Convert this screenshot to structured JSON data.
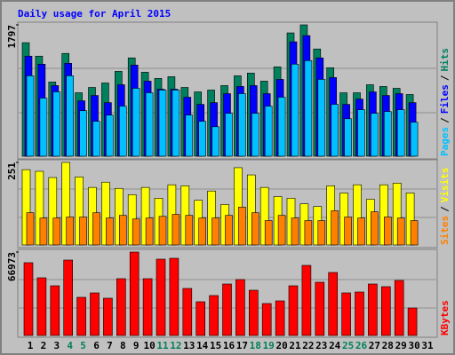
{
  "chart_data": [
    {
      "type": "bar",
      "title": "Daily usage for April 2015",
      "ylim": [
        0,
        1797
      ],
      "yticks": [
        1797
      ],
      "legend_separator": "/",
      "series": [
        {
          "name": "Hits",
          "color": "#00805c",
          "values": [
            1553,
            1369,
            1015,
            1406,
            868,
            941,
            1002,
            1161,
            1345,
            1149,
            1064,
            1088,
            941,
            880,
            905,
            966,
            1100,
            1137,
            1027,
            1222,
            1687,
            1797,
            1467,
            1210,
            868,
            868,
            978,
            954,
            929,
            844,
            null
          ]
        },
        {
          "name": "Files",
          "color": "#0000ff",
          "values": [
            1369,
            1259,
            966,
            1271,
            758,
            831,
            733,
            978,
            1247,
            1027,
            917,
            917,
            807,
            709,
            733,
            856,
            954,
            966,
            856,
            1051,
            1565,
            1650,
            1345,
            1076,
            709,
            782,
            880,
            831,
            856,
            733,
            null
          ]
        },
        {
          "name": "Pages",
          "color": "#00c0ff",
          "values": [
            1100,
            795,
            880,
            1100,
            623,
            477,
            562,
            685,
            929,
            868,
            905,
            905,
            562,
            477,
            403,
            587,
            856,
            587,
            685,
            807,
            1259,
            1308,
            1051,
            709,
            513,
            636,
            587,
            611,
            636,
            465,
            null
          ]
        }
      ]
    },
    {
      "type": "bar",
      "ylim": [
        0,
        251
      ],
      "yticks": [
        251
      ],
      "legend_separator": "/",
      "series": [
        {
          "name": "Visits",
          "color": "#ffff00",
          "values": [
            229,
            224,
            205,
            251,
            207,
            175,
            191,
            172,
            153,
            175,
            142,
            183,
            180,
            136,
            164,
            123,
            235,
            213,
            175,
            147,
            142,
            125,
            117,
            180,
            158,
            183,
            139,
            183,
            188,
            158,
            null
          ]
        },
        {
          "name": "Sites",
          "color": "#ff8000",
          "values": [
            98,
            82,
            82,
            85,
            85,
            98,
            82,
            90,
            79,
            82,
            87,
            93,
            90,
            82,
            82,
            90,
            115,
            98,
            74,
            90,
            82,
            74,
            74,
            104,
            85,
            82,
            101,
            85,
            82,
            74,
            null
          ]
        }
      ]
    },
    {
      "type": "bar",
      "ylim": [
        0,
        66973
      ],
      "yticks": [
        66973
      ],
      "categories": [
        "1",
        "2",
        "3",
        "4",
        "5",
        "6",
        "7",
        "8",
        "9",
        "10",
        "11",
        "12",
        "13",
        "14",
        "15",
        "16",
        "17",
        "18",
        "19",
        "20",
        "21",
        "22",
        "23",
        "24",
        "25",
        "26",
        "27",
        "28",
        "29",
        "30",
        "31"
      ],
      "category_colors": [
        "#000000",
        "#000000",
        "#000000",
        "#00805c",
        "#00805c",
        "#000000",
        "#000000",
        "#000000",
        "#000000",
        "#000000",
        "#00805c",
        "#00805c",
        "#000000",
        "#000000",
        "#000000",
        "#000000",
        "#000000",
        "#00805c",
        "#00805c",
        "#000000",
        "#000000",
        "#000000",
        "#000000",
        "#000000",
        "#00805c",
        "#00805c",
        "#000000",
        "#000000",
        "#000000",
        "#000000",
        "#000000"
      ],
      "series": [
        {
          "name": "KBytes",
          "color": "#ff0000",
          "values": [
            58424,
            46311,
            39899,
            60561,
            30636,
            34199,
            29924,
            45599,
            66973,
            45599,
            61274,
            61986,
            37761,
            27074,
            32062,
            41324,
            44886,
            36336,
            25649,
            27787,
            39899,
            56286,
            42749,
            50586,
            34199,
            34911,
            41324,
            39186,
            44174,
            22087,
            null
          ]
        }
      ]
    }
  ]
}
